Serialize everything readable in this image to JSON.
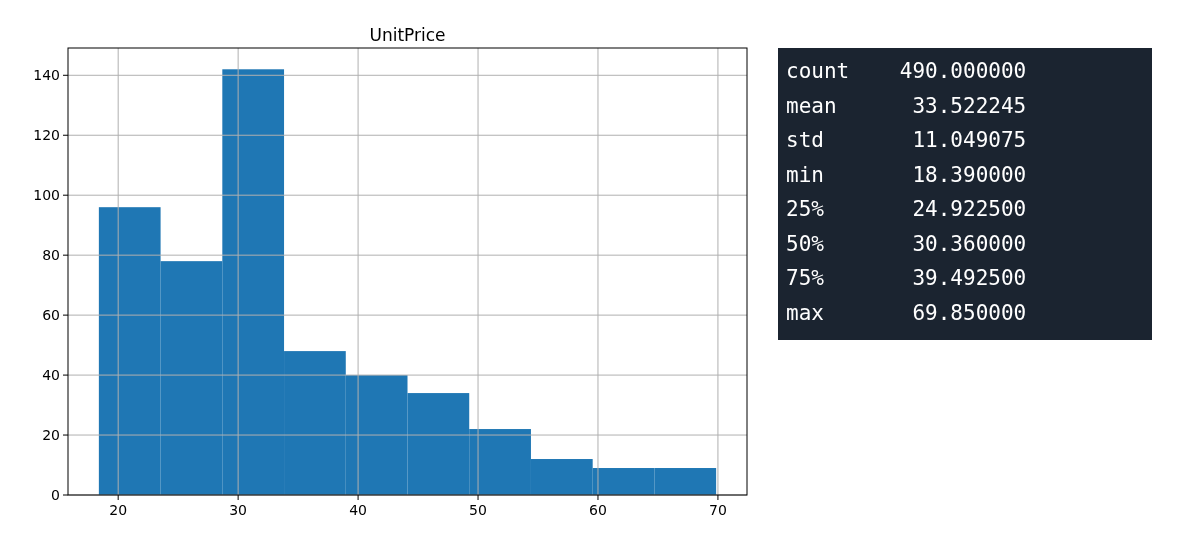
{
  "chart_data": [
    {
      "type": "histogram",
      "title": "UnitPrice",
      "bins": [
        18.39,
        23.536,
        28.682,
        33.828,
        38.974,
        44.12,
        49.266,
        54.412,
        59.558,
        64.704,
        69.85
      ],
      "values": [
        96,
        78,
        142,
        48,
        40,
        34,
        22,
        12,
        9,
        9
      ],
      "color": "#1f77b4",
      "xlim": [
        15.817,
        72.423
      ],
      "xticks": [
        20,
        30,
        40,
        50,
        60,
        70
      ],
      "ylim": [
        0,
        149.1
      ],
      "yticks": [
        0,
        20,
        40,
        60,
        80,
        100,
        120,
        140
      ],
      "grid": true
    },
    {
      "type": "other",
      "annotations": [
        "count    490.000000",
        "mean      33.522245",
        "std       11.049075",
        "min       18.390000",
        "25%       24.922500",
        "50%       30.360000",
        "75%       39.492500",
        "max       69.850000"
      ]
    }
  ]
}
